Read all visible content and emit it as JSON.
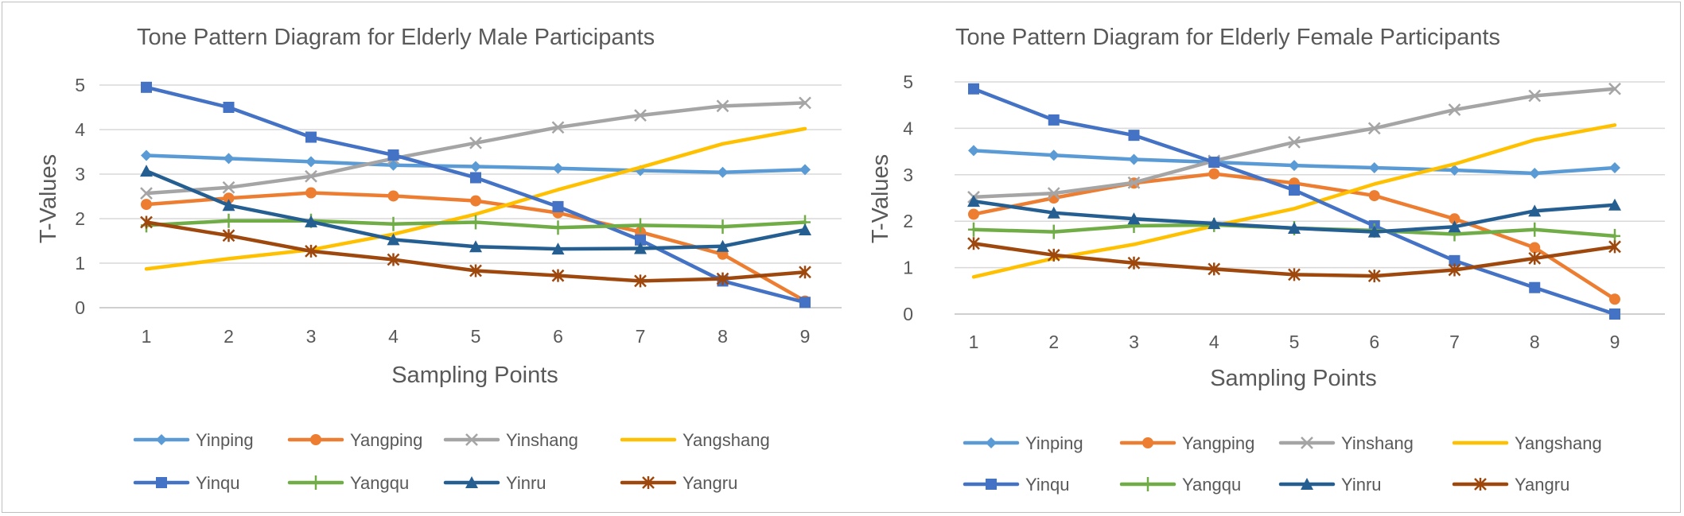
{
  "chart_data": [
    {
      "type": "line",
      "title": "Tone Pattern Diagram for Elderly Male Participants",
      "xlabel": "Sampling Points",
      "ylabel": "T-Values",
      "categories": [
        "1",
        "2",
        "3",
        "4",
        "5",
        "6",
        "7",
        "8",
        "9"
      ],
      "y_ticks": [
        "0",
        "1",
        "2",
        "3",
        "4",
        "5"
      ],
      "ylim": [
        0,
        5
      ],
      "grid": true,
      "legend_position": "bottom",
      "series": [
        {
          "name": "Yinping",
          "color": "#5B9BD5",
          "marker": "diamond",
          "values": [
            3.42,
            3.35,
            3.28,
            3.2,
            3.17,
            3.13,
            3.08,
            3.04,
            3.1
          ]
        },
        {
          "name": "Yangping",
          "color": "#ED7D31",
          "marker": "circle",
          "values": [
            2.32,
            2.46,
            2.58,
            2.51,
            2.4,
            2.13,
            1.7,
            1.2,
            0.15
          ]
        },
        {
          "name": "Yinshang",
          "color": "#A5A5A5",
          "marker": "x",
          "values": [
            2.57,
            2.7,
            2.95,
            3.35,
            3.7,
            4.05,
            4.32,
            4.53,
            4.6
          ]
        },
        {
          "name": "Yangshang",
          "color": "#FFC000",
          "marker": "none",
          "values": [
            0.87,
            1.1,
            1.3,
            1.65,
            2.1,
            2.65,
            3.15,
            3.68,
            4.02
          ]
        },
        {
          "name": "Yinqu",
          "color": "#4472C4",
          "marker": "square",
          "values": [
            4.95,
            4.5,
            3.83,
            3.43,
            2.92,
            2.27,
            1.52,
            0.6,
            0.12
          ]
        },
        {
          "name": "Yangqu",
          "color": "#70AD47",
          "marker": "plus",
          "values": [
            1.85,
            1.95,
            1.95,
            1.88,
            1.92,
            1.8,
            1.85,
            1.82,
            1.92
          ]
        },
        {
          "name": "Yinru",
          "color": "#255E91",
          "marker": "triangle",
          "values": [
            3.07,
            2.3,
            1.93,
            1.53,
            1.37,
            1.32,
            1.33,
            1.38,
            1.75
          ]
        },
        {
          "name": "Yangru",
          "color": "#9E480E",
          "marker": "star",
          "values": [
            1.92,
            1.62,
            1.27,
            1.08,
            0.83,
            0.72,
            0.6,
            0.65,
            0.8
          ]
        }
      ]
    },
    {
      "type": "line",
      "title": "Tone Pattern Diagram for Elderly Female Participants",
      "xlabel": "Sampling Points",
      "ylabel": "T-Values",
      "categories": [
        "1",
        "2",
        "3",
        "4",
        "5",
        "6",
        "7",
        "8",
        "9"
      ],
      "y_ticks": [
        "0",
        "1",
        "2",
        "3",
        "4",
        "5"
      ],
      "ylim": [
        0,
        5
      ],
      "grid": true,
      "legend_position": "bottom",
      "series": [
        {
          "name": "Yinping",
          "color": "#5B9BD5",
          "marker": "diamond",
          "values": [
            3.52,
            3.42,
            3.33,
            3.27,
            3.2,
            3.15,
            3.1,
            3.03,
            3.15
          ]
        },
        {
          "name": "Yangping",
          "color": "#ED7D31",
          "marker": "circle",
          "values": [
            2.15,
            2.5,
            2.82,
            3.02,
            2.82,
            2.55,
            2.05,
            1.43,
            0.32
          ]
        },
        {
          "name": "Yinshang",
          "color": "#A5A5A5",
          "marker": "x",
          "values": [
            2.52,
            2.6,
            2.83,
            3.3,
            3.7,
            4.0,
            4.4,
            4.7,
            4.85
          ]
        },
        {
          "name": "Yangshang",
          "color": "#FFC000",
          "marker": "none",
          "values": [
            0.8,
            1.2,
            1.5,
            1.9,
            2.27,
            2.8,
            3.23,
            3.75,
            4.07
          ]
        },
        {
          "name": "Yinqu",
          "color": "#4472C4",
          "marker": "square",
          "values": [
            4.85,
            4.18,
            3.85,
            3.27,
            2.67,
            1.9,
            1.15,
            0.57,
            0.0
          ]
        },
        {
          "name": "Yangqu",
          "color": "#70AD47",
          "marker": "plus",
          "values": [
            1.82,
            1.77,
            1.9,
            1.92,
            1.85,
            1.8,
            1.72,
            1.82,
            1.68
          ]
        },
        {
          "name": "Yinru",
          "color": "#255E91",
          "marker": "triangle",
          "values": [
            2.43,
            2.18,
            2.05,
            1.95,
            1.85,
            1.77,
            1.88,
            2.22,
            2.35
          ]
        },
        {
          "name": "Yangru",
          "color": "#9E480E",
          "marker": "star",
          "values": [
            1.52,
            1.27,
            1.1,
            0.97,
            0.85,
            0.82,
            0.95,
            1.2,
            1.45
          ]
        }
      ]
    }
  ]
}
